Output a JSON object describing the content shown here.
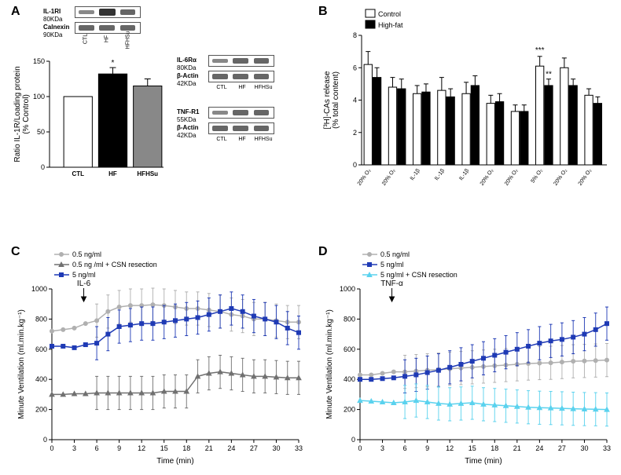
{
  "panelLabels": {
    "A": "A",
    "B": "B",
    "C": "C",
    "D": "D"
  },
  "A": {
    "westernsLeft": {
      "protein1": "IL-1RI",
      "size1": "80KDa",
      "protein2": "Calnexin",
      "size2": "90KDa"
    },
    "laneLabelsLeft": [
      "CTL",
      "HF",
      "HFHSu"
    ],
    "westernsRight1": {
      "protein1": "IL-6Rα",
      "size1": "80KDa",
      "protein2": "β-Actin",
      "size2": "42KDa"
    },
    "westernsRight2": {
      "protein1": "TNF-R1",
      "size1": "55KDa",
      "protein2": "β-Actin",
      "size2": "42KDa"
    },
    "laneLabelsRight": [
      "CTL",
      "HF",
      "HFHSu"
    ],
    "chart": {
      "yAxisTitle": "Ratio IL-1R/Loading protein\n(% Control)",
      "yTicks": [
        0,
        50,
        100,
        150
      ],
      "categories": [
        "CTL",
        "HF",
        "HFHSu"
      ],
      "values": [
        100,
        132,
        115
      ],
      "errors": [
        0,
        9,
        10
      ],
      "colors": [
        "#ffffff",
        "#000000",
        "#888888"
      ],
      "sig": [
        "",
        "*",
        ""
      ]
    }
  },
  "B": {
    "legend": {
      "control": "Control",
      "highfat": "High-fat"
    },
    "yAxisTitle1": "[³H]-CAs release",
    "yAxisTitle2": "(% total content)",
    "yTicks": [
      0,
      2,
      4,
      6,
      8
    ],
    "xLabels": [
      "20% O₂",
      "20% O₂",
      "IL-1β",
      "IL-1β",
      "IL-1β",
      "20% O₂",
      "20% O₂",
      "5% O₂",
      "20% O₂",
      "20% O₂"
    ],
    "valuesControl": [
      6.2,
      4.8,
      4.4,
      4.6,
      4.4,
      3.8,
      3.3,
      6.1,
      6.0,
      4.3
    ],
    "valuesHF": [
      5.4,
      4.7,
      4.5,
      4.2,
      4.9,
      3.9,
      3.3,
      4.9,
      4.9,
      3.8
    ],
    "errControl": [
      0.8,
      0.6,
      0.5,
      0.8,
      0.7,
      0.5,
      0.4,
      0.6,
      0.6,
      0.4
    ],
    "errHF": [
      0.6,
      0.6,
      0.5,
      0.5,
      0.6,
      0.5,
      0.4,
      0.4,
      0.4,
      0.4
    ],
    "sig": {
      "index": 7,
      "textTop": "***",
      "textMid": "**"
    }
  },
  "C": {
    "legend": [
      "0.5 ng/ml",
      "0.5 ng /ml + CSN resection",
      "5 ng/ml"
    ],
    "legendColors": [
      "#b0b0b0",
      "#707070",
      "#1f3ab5"
    ],
    "legendMarkers": [
      "circle",
      "triangle",
      "square"
    ],
    "yAxisTitle": "Minute Ventilation (ml.min.kg⁻¹)",
    "xAxisTitle": "Time (min)",
    "yTicks": [
      0,
      200,
      400,
      600,
      800,
      1000
    ],
    "xTicks": [
      0,
      3,
      6,
      9,
      12,
      15,
      18,
      21,
      24,
      27,
      30,
      33
    ],
    "injectionLabel": "IL-6",
    "injectionX": 3,
    "series": {
      "s1": {
        "color": "#b0b0b0",
        "marker": "circle",
        "y": [
          720,
          730,
          740,
          770,
          790,
          850,
          880,
          890,
          890,
          895,
          890,
          880,
          870,
          870,
          860,
          850,
          830,
          820,
          800,
          800,
          790,
          780,
          780
        ]
      },
      "s2": {
        "color": "#707070",
        "marker": "triangle",
        "y": [
          300,
          300,
          305,
          305,
          310,
          310,
          310,
          310,
          310,
          310,
          320,
          320,
          320,
          420,
          440,
          450,
          440,
          430,
          420,
          420,
          415,
          410,
          410
        ]
      },
      "s3": {
        "color": "#1f3ab5",
        "marker": "square",
        "y": [
          620,
          620,
          610,
          630,
          640,
          700,
          750,
          760,
          770,
          770,
          780,
          790,
          800,
          810,
          830,
          850,
          870,
          850,
          820,
          800,
          780,
          740,
          710
        ]
      }
    },
    "err": 110
  },
  "D": {
    "legend": [
      "0.5 ng/ml",
      "5 ng/ml",
      "5 ng/ml + CSN resection"
    ],
    "legendColors": [
      "#b0b0b0",
      "#1f3ab5",
      "#5ad2ee"
    ],
    "legendMarkers": [
      "circle",
      "square",
      "triangle"
    ],
    "yAxisTitle": "Minute Ventilation (ml.min.kg⁻¹)",
    "xAxisTitle": "Time (min)",
    "yTicks": [
      0,
      200,
      400,
      600,
      800,
      1000
    ],
    "xTicks": [
      0,
      3,
      6,
      9,
      12,
      15,
      18,
      21,
      24,
      27,
      30,
      33
    ],
    "injectionLabel": "TNF-α",
    "injectionX": 3,
    "series": {
      "s1": {
        "color": "#b0b0b0",
        "marker": "circle",
        "y": [
          430,
          430,
          440,
          450,
          450,
          455,
          460,
          465,
          470,
          475,
          480,
          485,
          490,
          495,
          500,
          505,
          508,
          510,
          515,
          520,
          522,
          525,
          528
        ]
      },
      "s2": {
        "color": "#1f3ab5",
        "marker": "square",
        "y": [
          400,
          400,
          405,
          410,
          420,
          430,
          445,
          460,
          480,
          500,
          520,
          540,
          560,
          580,
          600,
          620,
          640,
          655,
          665,
          680,
          700,
          730,
          770
        ]
      },
      "s3": {
        "color": "#5ad2ee",
        "marker": "triangle",
        "y": [
          260,
          255,
          250,
          245,
          250,
          260,
          250,
          240,
          235,
          240,
          245,
          235,
          230,
          225,
          220,
          215,
          212,
          210,
          208,
          205,
          203,
          202,
          200
        ]
      }
    },
    "err": 110
  }
}
